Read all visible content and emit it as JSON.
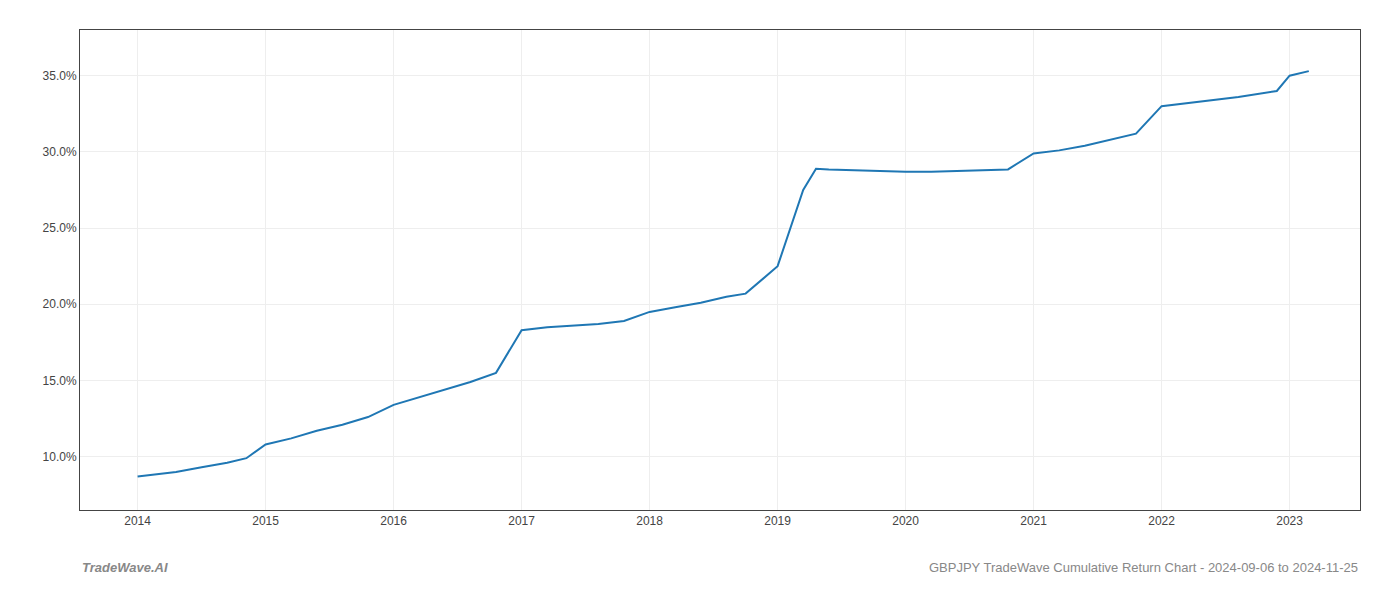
{
  "chart_data": {
    "type": "line",
    "x": [
      2014.0,
      2014.15,
      2014.3,
      2014.5,
      2014.7,
      2014.85,
      2015.0,
      2015.2,
      2015.4,
      2015.6,
      2015.8,
      2016.0,
      2016.2,
      2016.4,
      2016.6,
      2016.8,
      2017.0,
      2017.2,
      2017.4,
      2017.6,
      2017.8,
      2018.0,
      2018.2,
      2018.4,
      2018.6,
      2018.75,
      2019.0,
      2019.1,
      2019.2,
      2019.3,
      2019.4,
      2019.6,
      2019.8,
      2020.0,
      2020.2,
      2020.4,
      2020.6,
      2020.8,
      2021.0,
      2021.2,
      2021.4,
      2021.6,
      2021.8,
      2022.0,
      2022.3,
      2022.6,
      2022.9,
      2023.0,
      2023.15
    ],
    "values": [
      8.7,
      8.85,
      9.0,
      9.3,
      9.6,
      9.9,
      10.8,
      11.2,
      11.7,
      12.1,
      12.6,
      13.4,
      13.9,
      14.4,
      14.9,
      15.5,
      18.3,
      18.5,
      18.6,
      18.7,
      18.9,
      19.5,
      19.8,
      20.1,
      20.5,
      20.7,
      22.5,
      25.0,
      27.5,
      28.9,
      28.85,
      28.8,
      28.75,
      28.7,
      28.7,
      28.75,
      28.8,
      28.85,
      29.9,
      30.1,
      30.4,
      30.8,
      31.2,
      33.0,
      33.3,
      33.6,
      34.0,
      35.0,
      35.3
    ],
    "color": "#1f77b4",
    "xlim": [
      2013.55,
      2023.55
    ],
    "xticks": [
      2014,
      2015,
      2016,
      2017,
      2018,
      2019,
      2020,
      2021,
      2022,
      2023
    ],
    "ylim": [
      6.5,
      38.0
    ],
    "yticks": [
      {
        "value": 10.0,
        "label": "10.0%"
      },
      {
        "value": 15.0,
        "label": "15.0%"
      },
      {
        "value": 20.0,
        "label": "20.0%"
      },
      {
        "value": 25.0,
        "label": "25.0%"
      },
      {
        "value": 30.0,
        "label": "30.0%"
      },
      {
        "value": 35.0,
        "label": "35.0%"
      }
    ],
    "grid": true,
    "annotations": [
      {
        "text": "TradeWave.AI"
      },
      {
        "text": "GBPJPY TradeWave Cumulative Return Chart - 2024-09-06 to 2024-11-25"
      }
    ]
  }
}
